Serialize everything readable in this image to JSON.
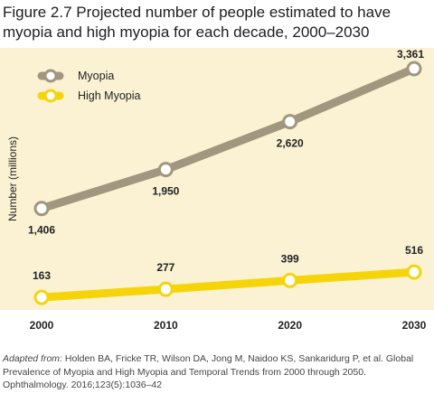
{
  "title": "Figure 2.7 Projected number of people estimated to have myopia and high myopia for each decade, 2000–2030",
  "footnote": {
    "lead": "Adapted from:",
    "text": "Holden BA, Fricke TR, Wilson DA, Jong M, Naidoo KS, Sankaridurg P, et al. Global Prevalence of Myopia and High Myopia and Temporal Trends from 2000 through 2050. Ophthalmology. 2016;123(5):1036–42"
  },
  "colors": {
    "background": "#fbf2d4",
    "myopia": "#a1967e",
    "high_myopia": "#f5d50a"
  },
  "chart_data": {
    "type": "line",
    "ylabel": "Number (millions)",
    "xlabel": "",
    "categories": [
      "2000",
      "2010",
      "2020",
      "2030"
    ],
    "ylim": [
      0,
      3500
    ],
    "grid": false,
    "legend_position": "top-left",
    "series": [
      {
        "name": "Myopia",
        "values": [
          1406,
          1950,
          2620,
          3361
        ],
        "labels": [
          "1,406",
          "1,950",
          "2,620",
          "3,361"
        ],
        "color": "#a1967e"
      },
      {
        "name": "High Myopia",
        "values": [
          163,
          277,
          399,
          516
        ],
        "labels": [
          "163",
          "277",
          "399",
          "516"
        ],
        "color": "#f5d50a"
      }
    ]
  }
}
